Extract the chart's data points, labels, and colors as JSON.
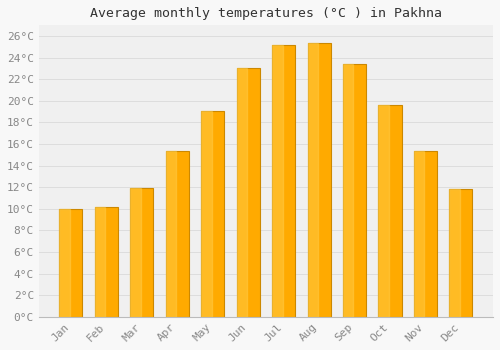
{
  "title": "Average monthly temperatures (°C ) in Pakhna",
  "months": [
    "Jan",
    "Feb",
    "Mar",
    "Apr",
    "May",
    "Jun",
    "Jul",
    "Aug",
    "Sep",
    "Oct",
    "Nov",
    "Dec"
  ],
  "values": [
    10.0,
    10.2,
    11.9,
    15.4,
    19.1,
    23.0,
    25.2,
    25.4,
    23.4,
    19.6,
    15.4,
    11.8
  ],
  "bar_color": "#FFAA00",
  "bar_edge_color": "#CC8800",
  "background_color": "#F8F8F8",
  "plot_bg_color": "#F0F0F0",
  "grid_color": "#DDDDDD",
  "title_color": "#333333",
  "tick_label_color": "#888888",
  "ylim": [
    0,
    27
  ],
  "yticks": [
    0,
    2,
    4,
    6,
    8,
    10,
    12,
    14,
    16,
    18,
    20,
    22,
    24,
    26
  ],
  "title_fontsize": 9.5,
  "tick_fontsize": 8
}
